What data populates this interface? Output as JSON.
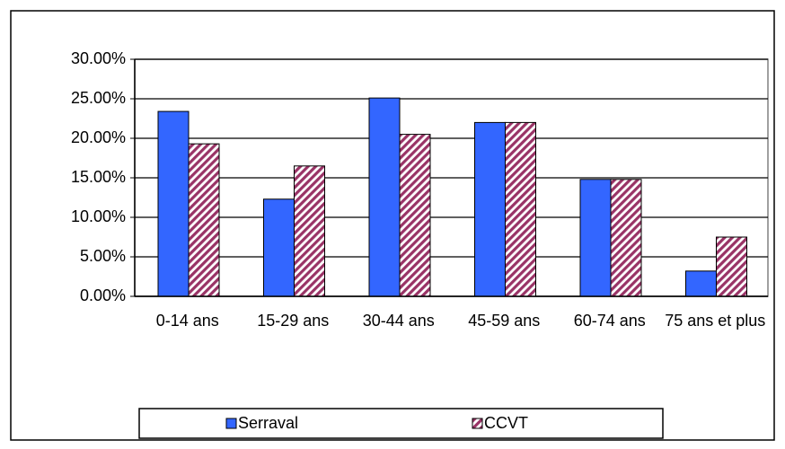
{
  "chart_data": {
    "type": "bar",
    "categories": [
      "0-14 ans",
      "15-29 ans",
      "30-44 ans",
      "45-59 ans",
      "60-74 ans",
      "75 ans et plus"
    ],
    "series": [
      {
        "name": "Serraval",
        "color": "#3366ff",
        "values": [
          23.4,
          12.3,
          25.1,
          22.0,
          14.8,
          3.2
        ]
      },
      {
        "name": "CCVT",
        "color": "#993366",
        "hatch": true,
        "values": [
          19.3,
          16.5,
          20.5,
          22.0,
          14.8,
          7.5
        ]
      }
    ],
    "ylim": [
      0,
      30
    ],
    "yticks": [
      {
        "value": 0,
        "label": "0.00%"
      },
      {
        "value": 5,
        "label": "5.00%"
      },
      {
        "value": 10,
        "label": "10.00%"
      },
      {
        "value": 15,
        "label": "15.00%"
      },
      {
        "value": 20,
        "label": "20.00%"
      },
      {
        "value": 25,
        "label": "25.00%"
      },
      {
        "value": 30,
        "label": "30.00%"
      }
    ],
    "grid": true,
    "legend": "bottom"
  }
}
